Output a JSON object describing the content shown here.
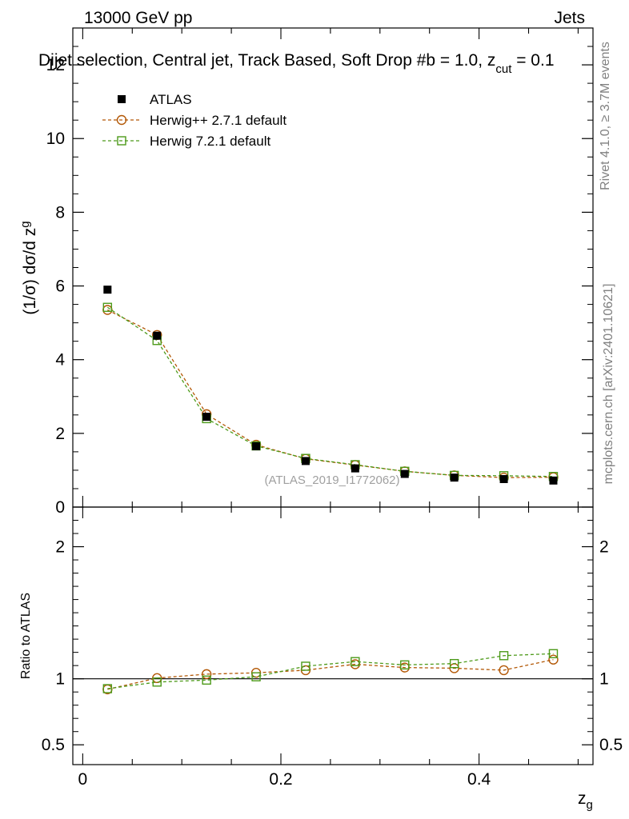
{
  "header": {
    "left": "13000 GeV pp",
    "right": "Jets",
    "title": "Dijet selection, Central jet, Track Based, Soft Drop #b = 1.0, z",
    "title_sub": "cut",
    "title_end": " = 0.1"
  },
  "side_labels": {
    "rivet": "Rivet 4.1.0, ≥ 3.7M events",
    "mcplots": "mcplots.cern.ch [arXiv:2401.10621]"
  },
  "watermark": "(ATLAS_2019_I1772062)",
  "legend": [
    {
      "label": "ATLAS",
      "marker": "filled-square"
    },
    {
      "label": "Herwig++ 2.7.1 default",
      "marker": "open-circle"
    },
    {
      "label": "Herwig 7.2.1 default",
      "marker": "open-square"
    }
  ],
  "colors": {
    "data": "#000000",
    "herwigpp": "#b35806",
    "herwig7": "#4d9a1a",
    "axis": "#000000",
    "label_gray": "#808080"
  },
  "chart_data": [
    {
      "type": "scatter",
      "panel": "main",
      "ylabel": "(1/σ) dσ/d z",
      "ylabel_sub": "g",
      "xlabel": "z",
      "xlabel_sub": "g",
      "xlim": [
        -0.01,
        0.515
      ],
      "ylim": [
        0,
        13
      ],
      "yticks": [
        0,
        2,
        4,
        6,
        8,
        10,
        12
      ],
      "ytick_labels": [
        "0",
        "2",
        "4",
        "6",
        "8",
        "10",
        "12"
      ],
      "x": [
        0.025,
        0.075,
        0.125,
        0.175,
        0.225,
        0.275,
        0.325,
        0.375,
        0.425,
        0.475
      ],
      "series": [
        {
          "name": "ATLAS",
          "values": [
            5.9,
            4.65,
            2.45,
            1.65,
            1.25,
            1.05,
            0.9,
            0.8,
            0.76,
            0.72
          ]
        },
        {
          "name": "Herwig++ 2.7.1 default",
          "values": [
            5.35,
            4.67,
            2.52,
            1.69,
            1.31,
            1.14,
            0.97,
            0.86,
            0.8,
            0.81
          ]
        },
        {
          "name": "Herwig 7.2.1 default",
          "values": [
            5.42,
            4.52,
            2.4,
            1.66,
            1.32,
            1.15,
            0.97,
            0.86,
            0.85,
            0.83
          ]
        }
      ]
    },
    {
      "type": "line",
      "panel": "ratio",
      "ylabel": "Ratio to ATLAS",
      "xlabel": "z",
      "xlabel_sub": "g",
      "xlim": [
        -0.01,
        0.515
      ],
      "ylim": [
        0.35,
        2.3
      ],
      "yticks": [
        0.5,
        1,
        2
      ],
      "ytick_labels": [
        "0.5",
        "1",
        "2"
      ],
      "xticks": [
        0,
        0.2,
        0.4
      ],
      "xtick_labels": [
        "0",
        "0.2",
        "0.4"
      ],
      "x": [
        0.025,
        0.075,
        0.125,
        0.175,
        0.225,
        0.275,
        0.325,
        0.375,
        0.425,
        0.475
      ],
      "series": [
        {
          "name": "Herwig++ 2.7.1 default",
          "values": [
            0.92,
            1.005,
            1.035,
            1.045,
            1.065,
            1.11,
            1.085,
            1.08,
            1.065,
            1.145
          ]
        },
        {
          "name": "Herwig 7.2.1 default",
          "values": [
            0.925,
            0.975,
            0.99,
            1.015,
            1.095,
            1.13,
            1.105,
            1.115,
            1.175,
            1.19
          ]
        }
      ]
    }
  ]
}
